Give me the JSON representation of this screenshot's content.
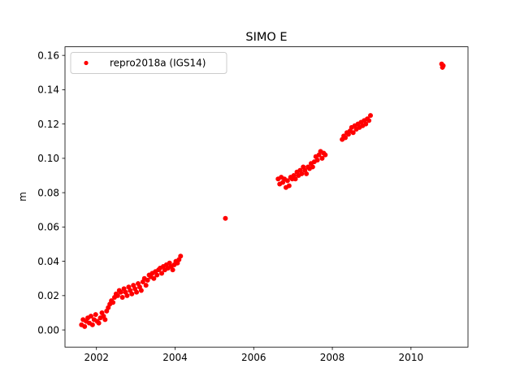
{
  "chart_data": {
    "type": "scatter",
    "title": "SIMO E",
    "xlabel": "",
    "ylabel": "m",
    "xlim": [
      2001.2,
      2011.45
    ],
    "ylim": [
      -0.01,
      0.165
    ],
    "xticks": [
      2002,
      2004,
      2006,
      2008,
      2010
    ],
    "xtick_labels": [
      "2002",
      "2004",
      "2006",
      "2008",
      "2010"
    ],
    "yticks": [
      0.0,
      0.02,
      0.04,
      0.06,
      0.08,
      0.1,
      0.12,
      0.14,
      0.16
    ],
    "ytick_labels": [
      "0.00",
      "0.02",
      "0.04",
      "0.06",
      "0.08",
      "0.10",
      "0.12",
      "0.14",
      "0.16"
    ],
    "grid": false,
    "legend_position": "top-left",
    "marker_color": "#ff0000",
    "series": [
      {
        "name": "repro2018a (IGS14)",
        "marker": "circle",
        "x": [
          2001.62,
          2001.66,
          2001.7,
          2001.74,
          2001.78,
          2001.82,
          2001.86,
          2001.9,
          2001.94,
          2001.98,
          2002.02,
          2002.06,
          2002.1,
          2002.14,
          2002.18,
          2002.22,
          2002.26,
          2002.3,
          2002.34,
          2002.38,
          2002.42,
          2002.46,
          2002.5,
          2002.54,
          2002.58,
          2002.62,
          2002.66,
          2002.7,
          2002.74,
          2002.78,
          2002.82,
          2002.86,
          2002.9,
          2002.94,
          2002.98,
          2003.02,
          2003.06,
          2003.1,
          2003.14,
          2003.18,
          2003.22,
          2003.26,
          2003.3,
          2003.34,
          2003.38,
          2003.42,
          2003.46,
          2003.5,
          2003.54,
          2003.58,
          2003.62,
          2003.66,
          2003.7,
          2003.74,
          2003.78,
          2003.82,
          2003.86,
          2003.9,
          2003.94,
          2003.98,
          2004.02,
          2004.06,
          2004.1,
          2004.14,
          2005.28,
          2006.62,
          2006.66,
          2006.7,
          2006.74,
          2006.78,
          2006.82,
          2006.86,
          2006.9,
          2006.94,
          2006.98,
          2007.02,
          2007.06,
          2007.1,
          2007.14,
          2007.18,
          2007.22,
          2007.26,
          2007.3,
          2007.34,
          2007.38,
          2007.42,
          2007.46,
          2007.5,
          2007.54,
          2007.58,
          2007.62,
          2007.66,
          2007.7,
          2007.74,
          2007.78,
          2007.82,
          2008.25,
          2008.29,
          2008.33,
          2008.37,
          2008.41,
          2008.45,
          2008.49,
          2008.53,
          2008.57,
          2008.61,
          2008.65,
          2008.69,
          2008.73,
          2008.77,
          2008.81,
          2008.85,
          2008.89,
          2008.93,
          2008.97,
          2010.78,
          2010.8,
          2010.82
        ],
        "y": [
          0.003,
          0.006,
          0.002,
          0.005,
          0.007,
          0.004,
          0.008,
          0.003,
          0.006,
          0.009,
          0.005,
          0.004,
          0.007,
          0.01,
          0.008,
          0.006,
          0.011,
          0.013,
          0.015,
          0.017,
          0.016,
          0.019,
          0.021,
          0.02,
          0.023,
          0.022,
          0.019,
          0.024,
          0.022,
          0.02,
          0.025,
          0.023,
          0.021,
          0.026,
          0.024,
          0.022,
          0.027,
          0.025,
          0.023,
          0.028,
          0.03,
          0.026,
          0.029,
          0.032,
          0.031,
          0.033,
          0.03,
          0.034,
          0.032,
          0.035,
          0.036,
          0.033,
          0.037,
          0.035,
          0.038,
          0.036,
          0.039,
          0.037,
          0.035,
          0.038,
          0.04,
          0.039,
          0.041,
          0.043,
          0.065,
          0.088,
          0.085,
          0.089,
          0.086,
          0.088,
          0.083,
          0.087,
          0.084,
          0.089,
          0.088,
          0.09,
          0.088,
          0.092,
          0.09,
          0.093,
          0.091,
          0.095,
          0.093,
          0.091,
          0.095,
          0.094,
          0.097,
          0.095,
          0.098,
          0.101,
          0.099,
          0.102,
          0.104,
          0.1,
          0.103,
          0.102,
          0.111,
          0.113,
          0.112,
          0.115,
          0.114,
          0.116,
          0.118,
          0.115,
          0.119,
          0.117,
          0.12,
          0.118,
          0.121,
          0.119,
          0.122,
          0.12,
          0.123,
          0.122,
          0.125,
          0.155,
          0.153,
          0.154
        ]
      }
    ]
  }
}
